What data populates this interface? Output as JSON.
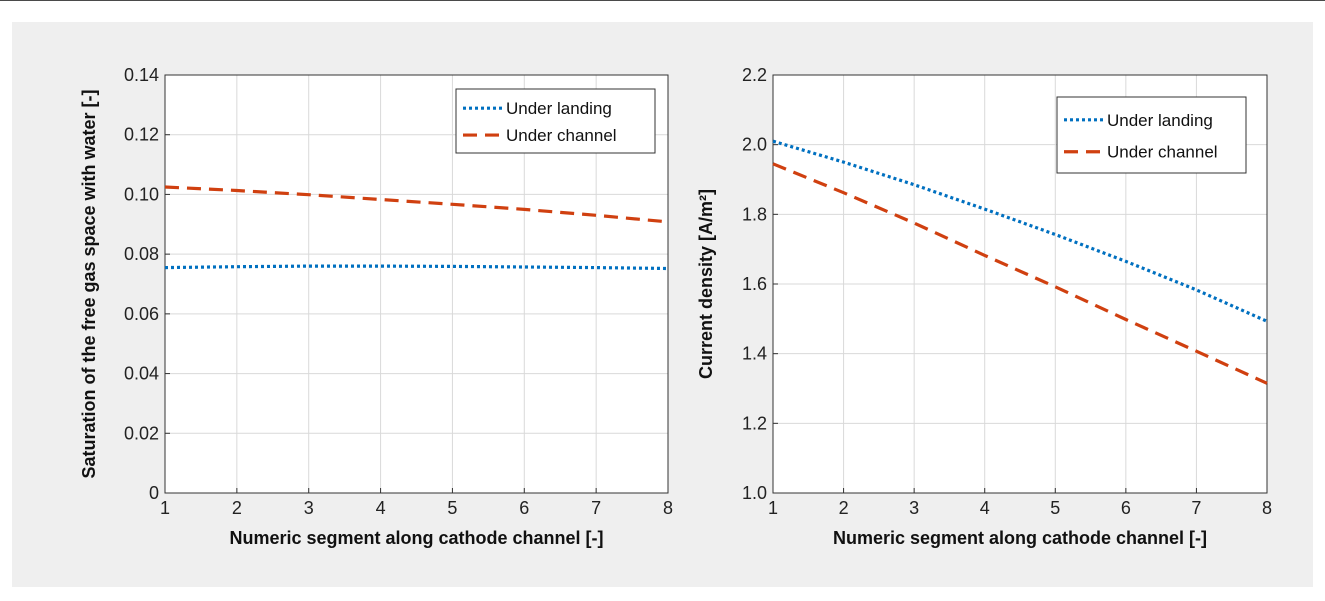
{
  "colors": {
    "under_landing": "#0070c0",
    "under_channel": "#d04010",
    "grid": "#d9d9d9",
    "panel_bg": "#efefef"
  },
  "chart_data": [
    {
      "type": "line",
      "xlabel": "Numeric segment along cathode channel [-]",
      "ylabel": "Saturation of the free gas space with water [-]",
      "xlim": [
        1,
        8
      ],
      "ylim": [
        0,
        0.14
      ],
      "xticks": [
        1,
        2,
        3,
        4,
        5,
        6,
        7,
        8
      ],
      "yticks": [
        0,
        0.02,
        0.04,
        0.06,
        0.08,
        0.1,
        0.12,
        0.14
      ],
      "ytick_labels": [
        "0",
        "0.02",
        "0.04",
        "0.06",
        "0.08",
        "0.10",
        "0.12",
        "0.14"
      ],
      "grid": true,
      "legend_position": "top-right",
      "x": [
        1,
        2,
        3,
        4,
        5,
        6,
        7,
        8
      ],
      "series": [
        {
          "name": "Under landing",
          "style": "dotted",
          "values": [
            0.0755,
            0.0758,
            0.076,
            0.076,
            0.0759,
            0.0757,
            0.0755,
            0.0752
          ]
        },
        {
          "name": "Under channel",
          "style": "dashed",
          "values": [
            0.1025,
            0.1013,
            0.0999,
            0.0983,
            0.0967,
            0.095,
            0.093,
            0.0908
          ]
        }
      ]
    },
    {
      "type": "line",
      "xlabel": "Numeric segment along cathode channel [-]",
      "ylabel": "Current density [A/m²]",
      "xlim": [
        1,
        8
      ],
      "ylim": [
        1.0,
        2.2
      ],
      "xticks": [
        1,
        2,
        3,
        4,
        5,
        6,
        7,
        8
      ],
      "yticks": [
        1.0,
        1.2,
        1.4,
        1.6,
        1.8,
        2.0,
        2.2
      ],
      "ytick_labels": [
        "1.0",
        "1.2",
        "1.4",
        "1.6",
        "1.8",
        "2.0",
        "2.2"
      ],
      "grid": true,
      "legend_position": "top-right",
      "x": [
        1,
        2,
        3,
        4,
        5,
        6,
        7,
        8
      ],
      "series": [
        {
          "name": "Under landing",
          "style": "dotted",
          "values": [
            2.01,
            1.95,
            1.885,
            1.815,
            1.742,
            1.665,
            1.583,
            1.493
          ]
        },
        {
          "name": "Under channel",
          "style": "dashed",
          "values": [
            1.945,
            1.862,
            1.775,
            1.682,
            1.592,
            1.498,
            1.407,
            1.315
          ]
        }
      ]
    }
  ]
}
